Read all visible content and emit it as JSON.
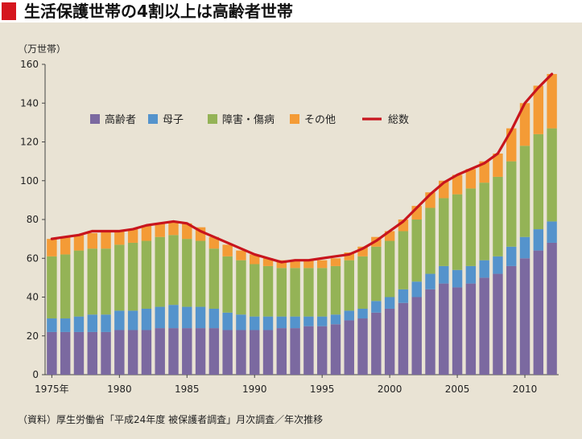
{
  "title": "生活保護世帯の4割以上は高齢者世帯",
  "source": "（資料）厚生労働省「平成24年度 被保護者調査」月次調査／年次推移",
  "chart_data": {
    "type": "bar",
    "stacked": true,
    "ylabel": "（万世帯）",
    "ylim": [
      0,
      160
    ],
    "yticks": [
      0,
      20,
      40,
      60,
      80,
      100,
      120,
      140,
      160
    ],
    "xtick_labels": [
      {
        "year": 1975,
        "label": "1975年"
      },
      {
        "year": 1980,
        "label": "1980"
      },
      {
        "year": 1985,
        "label": "1985"
      },
      {
        "year": 1990,
        "label": "1990"
      },
      {
        "year": 1995,
        "label": "1995"
      },
      {
        "year": 2000,
        "label": "2000"
      },
      {
        "year": 2005,
        "label": "2005"
      },
      {
        "year": 2010,
        "label": "2010"
      }
    ],
    "grid": false,
    "legend_position": "top-left",
    "x": [
      1975,
      1976,
      1977,
      1978,
      1979,
      1980,
      1981,
      1982,
      1983,
      1984,
      1985,
      1986,
      1987,
      1988,
      1989,
      1990,
      1991,
      1992,
      1993,
      1994,
      1995,
      1996,
      1997,
      1998,
      1999,
      2000,
      2001,
      2002,
      2003,
      2004,
      2005,
      2006,
      2007,
      2008,
      2009,
      2010,
      2011,
      2012
    ],
    "series": [
      {
        "name": "高齢者",
        "color": "#7b69a0",
        "values": [
          22,
          22,
          22,
          22,
          22,
          23,
          23,
          23,
          24,
          24,
          24,
          24,
          24,
          23,
          23,
          23,
          23,
          24,
          24,
          25,
          25,
          26,
          28,
          29,
          32,
          34,
          37,
          40,
          44,
          47,
          45,
          47,
          50,
          52,
          56,
          60,
          64,
          68
        ]
      },
      {
        "name": "母子",
        "color": "#5493cc",
        "values": [
          7,
          7,
          8,
          9,
          9,
          10,
          10,
          11,
          11,
          12,
          11,
          11,
          10,
          9,
          8,
          7,
          7,
          6,
          6,
          5,
          5,
          5,
          5,
          5,
          6,
          6,
          7,
          8,
          8,
          9,
          9,
          9,
          9,
          9,
          10,
          11,
          11,
          11
        ]
      },
      {
        "name": "障害・傷病",
        "color": "#94b356",
        "values": [
          32,
          33,
          34,
          34,
          34,
          34,
          35,
          35,
          36,
          36,
          35,
          34,
          31,
          29,
          28,
          27,
          26,
          25,
          25,
          25,
          25,
          25,
          26,
          27,
          28,
          29,
          30,
          32,
          34,
          35,
          39,
          40,
          40,
          41,
          44,
          47,
          49,
          48
        ]
      },
      {
        "name": "その他",
        "color": "#f49b36",
        "values": [
          9,
          9,
          8,
          8,
          9,
          7,
          7,
          8,
          7,
          7,
          8,
          7,
          6,
          6,
          5,
          5,
          4,
          4,
          4,
          4,
          4,
          4,
          4,
          5,
          5,
          5,
          6,
          7,
          8,
          9,
          10,
          10,
          11,
          12,
          17,
          22,
          25,
          28
        ]
      }
    ],
    "line": {
      "name": "総数",
      "color": "#c8151d",
      "values": [
        70,
        71,
        72,
        74,
        74,
        74,
        75,
        77,
        78,
        79,
        78,
        74,
        71,
        68,
        65,
        62,
        60,
        58,
        59,
        59,
        60,
        61,
        62,
        65,
        69,
        74,
        79,
        86,
        93,
        99,
        103,
        106,
        109,
        114,
        126,
        140,
        148,
        155
      ]
    }
  }
}
